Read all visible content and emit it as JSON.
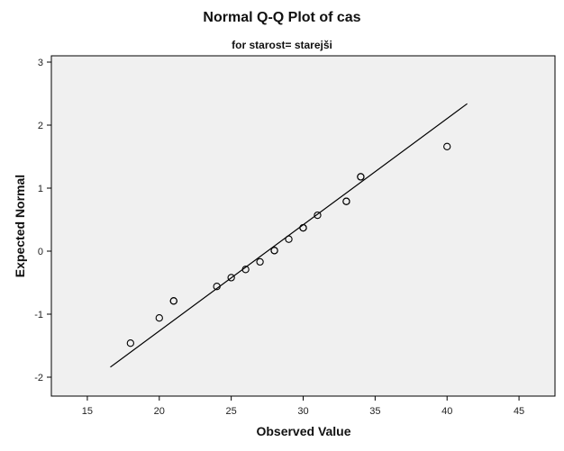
{
  "chart_data": {
    "type": "scatter",
    "title": "Normal Q-Q Plot of cas",
    "subtitle": "for starost= starejši",
    "xlabel": "Observed Value",
    "ylabel": "Expected Normal",
    "xlim": [
      12.5,
      47.5
    ],
    "ylim": [
      -2.3,
      3.1
    ],
    "xticks": [
      15,
      20,
      25,
      30,
      35,
      40,
      45
    ],
    "yticks": [
      -2,
      -1,
      0,
      1,
      2,
      3
    ],
    "grid": false,
    "points": [
      {
        "x": 18,
        "y": -1.46
      },
      {
        "x": 20,
        "y": -1.06
      },
      {
        "x": 21,
        "y": -0.79
      },
      {
        "x": 21,
        "y": -0.79
      },
      {
        "x": 24,
        "y": -0.56
      },
      {
        "x": 25,
        "y": -0.42
      },
      {
        "x": 26,
        "y": -0.29
      },
      {
        "x": 27,
        "y": -0.17
      },
      {
        "x": 28,
        "y": 0.01
      },
      {
        "x": 28,
        "y": 0.01
      },
      {
        "x": 29,
        "y": 0.19
      },
      {
        "x": 30,
        "y": 0.37
      },
      {
        "x": 30,
        "y": 0.37
      },
      {
        "x": 31,
        "y": 0.57
      },
      {
        "x": 33,
        "y": 0.79
      },
      {
        "x": 33,
        "y": 0.79
      },
      {
        "x": 34,
        "y": 1.18
      },
      {
        "x": 34,
        "y": 1.18
      },
      {
        "x": 40,
        "y": 1.66
      }
    ],
    "reference_line": {
      "x": [
        16.6,
        41.4
      ],
      "y": [
        -1.84,
        2.34
      ]
    },
    "colors": {
      "plot_background": "#f0f0f0",
      "marker": "#000000",
      "line": "#000000"
    }
  }
}
